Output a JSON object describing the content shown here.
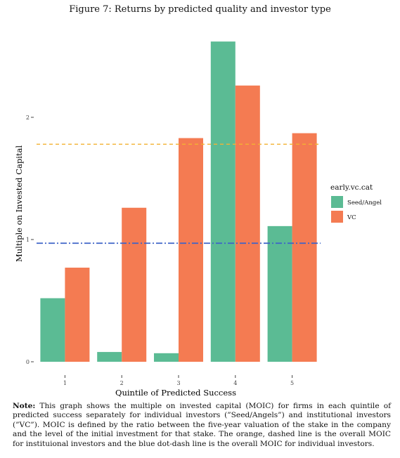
{
  "figure": {
    "title": "Figure 7: Returns by predicted quality and investor type",
    "note_label": "Note:",
    "note_text": "This graph shows the multiple on invested capital (MOIC) for firms in each quintile of predicted success separately for individual investors (”Seed/Angels”) and institutional investors (”VC”). MOIC is defined by the ratio between the five-year valuation of the stake in the company and the level of the initial investment for that stake. The orange, dashed line is the overall MOIC for instituional investors and the blue dot-dash line is the overall MOIC for individual investors."
  },
  "chart_data": {
    "type": "bar",
    "xlabel": "Quintile of Predicted Success",
    "ylabel": "Multiple on Invested Capital",
    "categories": [
      "1",
      "2",
      "3",
      "4",
      "5"
    ],
    "y_ticks": [
      0,
      1,
      2
    ],
    "ylim": [
      0,
      2.7
    ],
    "grid": false,
    "legend": {
      "title": "early.vc.cat",
      "placement": "right"
    },
    "series": [
      {
        "name": "Seed/Angel",
        "color": "#5bbb94",
        "values": [
          0.52,
          0.08,
          0.07,
          2.62,
          1.11
        ]
      },
      {
        "name": "VC",
        "color": "#f47b52",
        "values": [
          0.77,
          1.26,
          1.83,
          2.26,
          1.87
        ]
      }
    ],
    "reference_lines": [
      {
        "series": "VC",
        "style": "dashed",
        "color": "#f2b233",
        "value": 1.78
      },
      {
        "series": "Seed/Angel",
        "style": "dot-dash",
        "color": "#3d63c8",
        "value": 0.97
      }
    ]
  }
}
